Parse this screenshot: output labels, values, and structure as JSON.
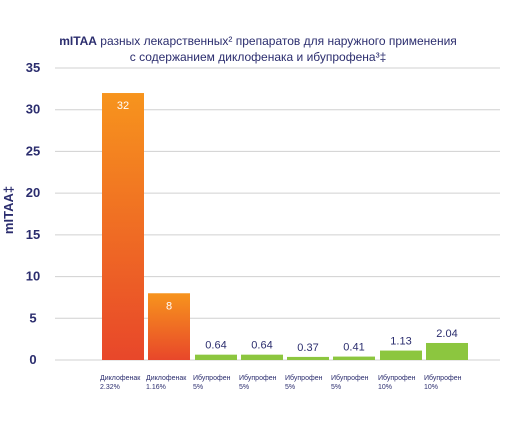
{
  "chart_data": {
    "type": "bar",
    "title_bold": "mITAA",
    "title_rest_line1": " разных лекарственных² препаратов для наружного применения",
    "title_line2": "с содержанием диклофенака и ибупрофена³‡",
    "ylabel": "mITAA‡",
    "ylim": [
      0,
      35
    ],
    "yticks": [
      "0",
      "5",
      "10",
      "15",
      "20",
      "25",
      "30",
      "35"
    ],
    "categories": [
      [
        "Диклофенак",
        "2.32%"
      ],
      [
        "Диклофенак",
        "1.16%"
      ],
      [
        "Ибупрофен",
        "5%"
      ],
      [
        "Ибупрофен",
        "5%"
      ],
      [
        "Ибупрофен",
        "5%"
      ],
      [
        "Ибупрофен",
        "5%"
      ],
      [
        "Ибупрофен",
        "10%"
      ],
      [
        "Ибупрофен",
        "10%"
      ]
    ],
    "values": [
      32,
      8,
      0.64,
      0.64,
      0.37,
      0.41,
      1.13,
      2.04
    ],
    "labels": [
      "32",
      "8",
      "0.64",
      "0.64",
      "0.37",
      "0.41",
      "1.13",
      "2.04"
    ],
    "colors": [
      "orange-gradient",
      "orange-gradient",
      "#8cc63f",
      "#8cc63f",
      "#8cc63f",
      "#8cc63f",
      "#8cc63f",
      "#8cc63f"
    ],
    "grid": true
  }
}
